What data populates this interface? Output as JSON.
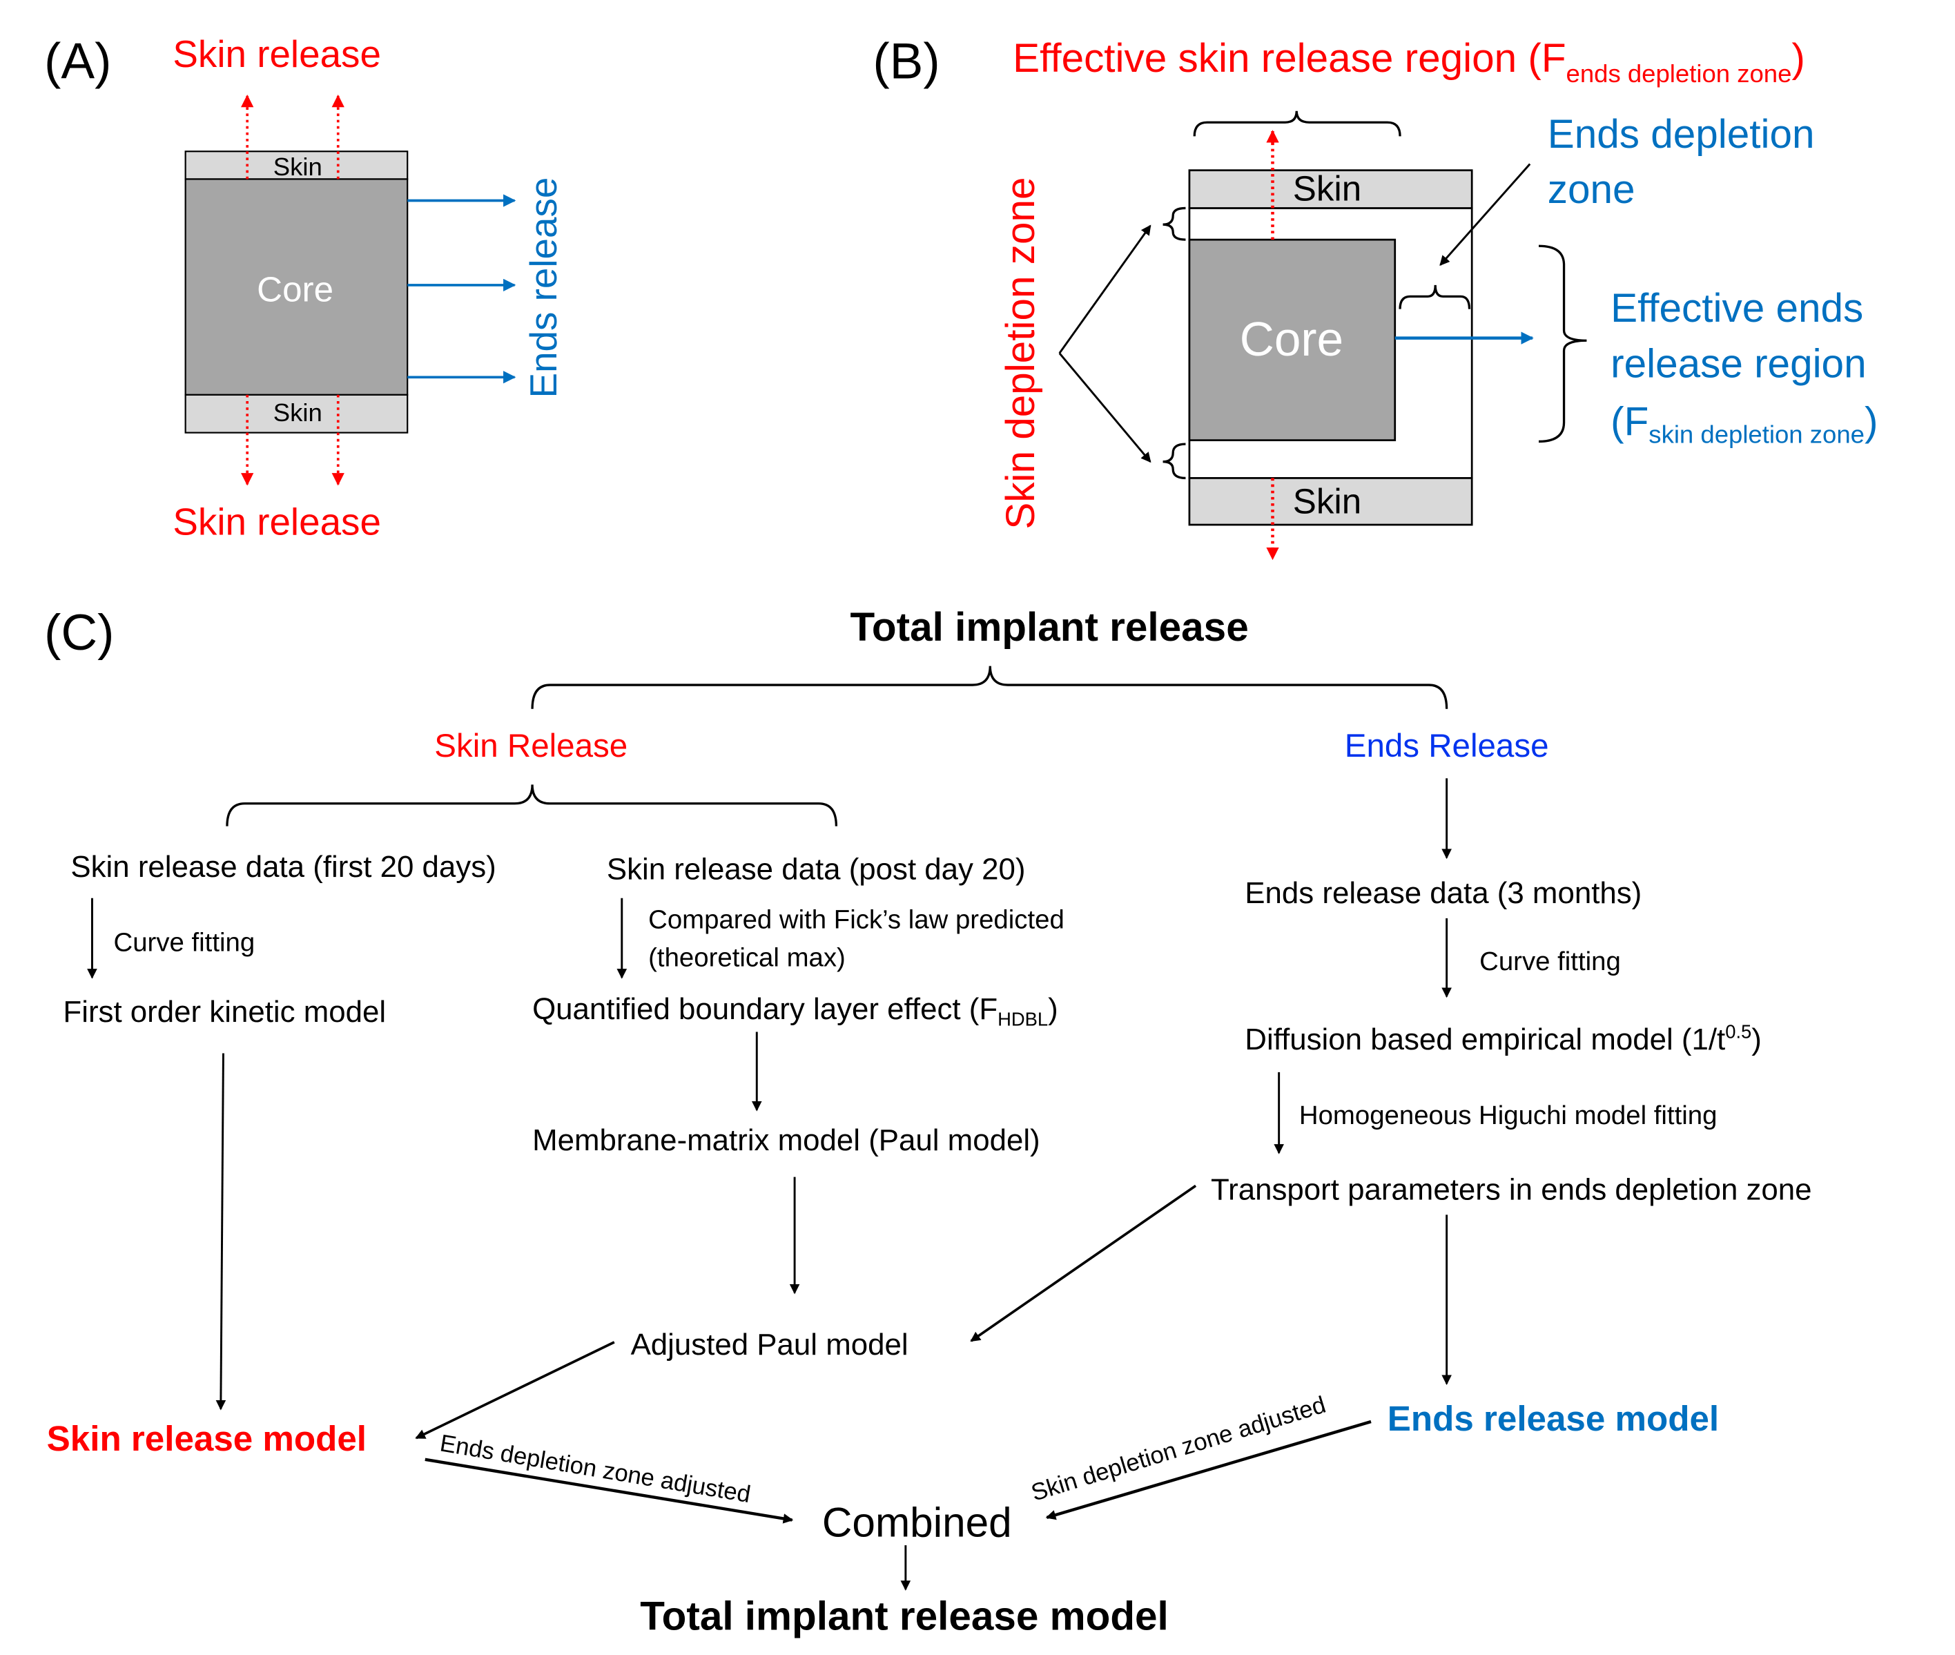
{
  "colors": {
    "red": "#ff0000",
    "blue": "#0070c0",
    "ends_release_heading": "#0033ee",
    "core": "#a6a6a6",
    "skin": "#d9d9d9"
  },
  "panel_a": {
    "label": "(A)",
    "skin_release_top": "Skin release",
    "skin_release_bottom": "Skin release",
    "skin_top": "Skin",
    "skin_bottom": "Skin",
    "core": "Core",
    "ends_release": "Ends release"
  },
  "panel_b": {
    "label": "(B)",
    "effective_skin_title": "Effective skin release region (F",
    "effective_skin_sub": "ends depletion zone",
    "effective_skin_close": ")",
    "ends_depletion_1": "Ends depletion",
    "ends_depletion_2": "zone",
    "skin_top": "Skin",
    "skin_bottom": "Skin",
    "core": "Core",
    "effective_ends_1": "Effective ends",
    "effective_ends_2": "release region",
    "effective_ends_3": "(F",
    "effective_ends_sub": "skin depletion zone",
    "effective_ends_close": ")",
    "skin_depletion_zone": "Skin depletion zone"
  },
  "panel_c": {
    "label": "(C)",
    "title": "Total implant release",
    "skin_release": "Skin Release",
    "ends_release": "Ends Release",
    "skin_data_first": "Skin release data (first 20 days)",
    "curve_fitting_left": "Curve fitting",
    "first_order": "First order kinetic model",
    "skin_data_post": "Skin release data (post day 20)",
    "compared_1": "Compared with Fick’s law predicted",
    "compared_2": "(theoretical max)",
    "quantified": "Quantified boundary layer effect (F",
    "quantified_sub": "HDBL",
    "quantified_close": ")",
    "membrane": "Membrane-matrix model (Paul model)",
    "adjusted_paul": "Adjusted Paul model",
    "skin_model": "Skin release model",
    "ends_data": "Ends release data (3 months)",
    "curve_fitting_right": "Curve fitting",
    "diffusion": "Diffusion based empirical model (1/t",
    "diffusion_sup": "0.5",
    "diffusion_close": ")",
    "higuchi": "Homogeneous Higuchi model fitting",
    "transport": "Transport parameters in ends depletion zone",
    "ends_model": "Ends release model",
    "ends_adjusted": "Ends depletion zone adjusted",
    "skin_adjusted": "Skin depletion zone adjusted",
    "combined": "Combined",
    "total_model": "Total implant release model"
  }
}
